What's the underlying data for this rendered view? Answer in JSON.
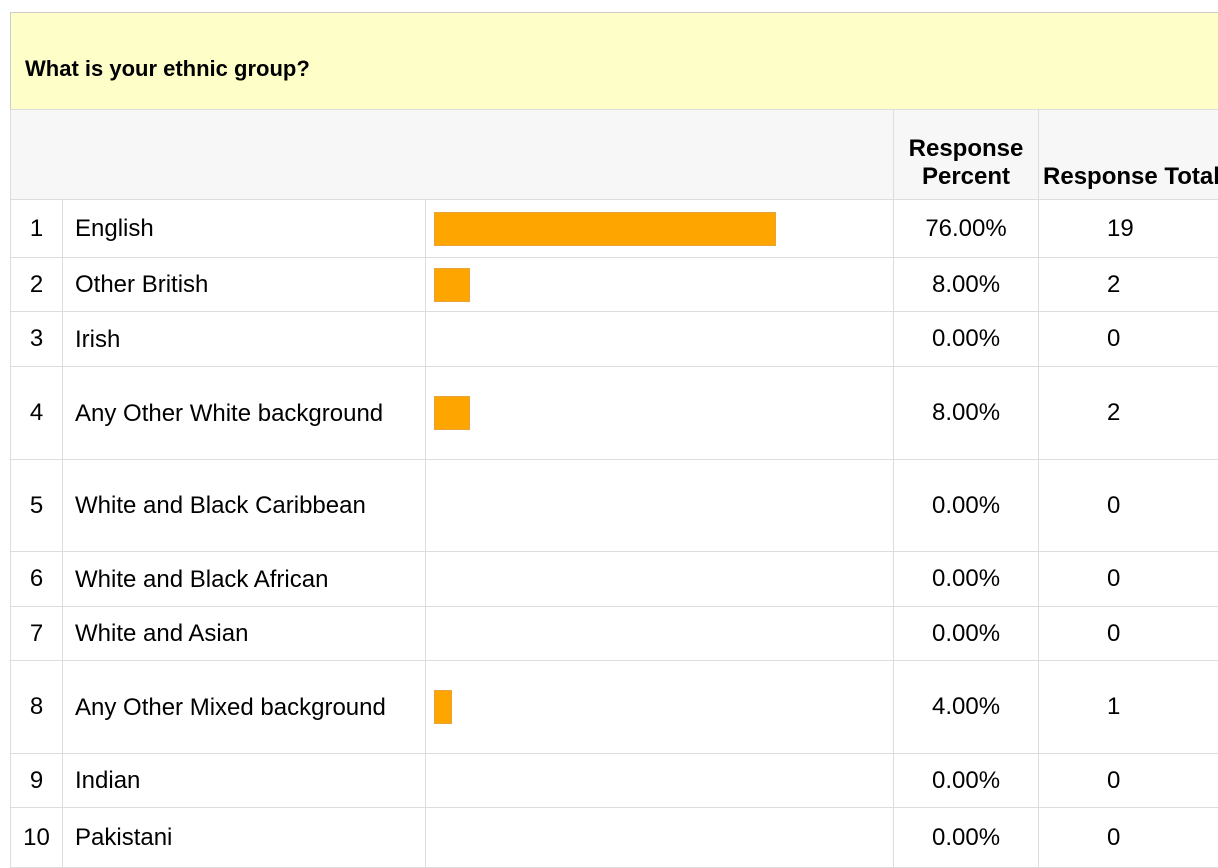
{
  "title": "What is your ethnic group?",
  "table": {
    "columns": [
      "Response Percent",
      "Response Total"
    ],
    "rows": [
      {
        "index": 1,
        "answer": "English",
        "percent": {
          "value": 76,
          "label": "76.00%"
        },
        "total": 19
      },
      {
        "index": 2,
        "answer": "Other British",
        "percent": {
          "value": 8,
          "label": "8.00%"
        },
        "total": 2
      },
      {
        "index": 3,
        "answer": "Irish",
        "percent": {
          "value": 0,
          "label": "0.00%"
        },
        "total": 0
      },
      {
        "index": 4,
        "answer": "Any Other White background",
        "percent": {
          "value": 8,
          "label": "8.00%"
        },
        "total": 2
      },
      {
        "index": 5,
        "answer": "White and Black Caribbean",
        "percent": {
          "value": 0,
          "label": "0.00%"
        },
        "total": 0
      },
      {
        "index": 6,
        "answer": "White and Black African",
        "percent": {
          "value": 0,
          "label": "0.00%"
        },
        "total": 0
      },
      {
        "index": 7,
        "answer": "White and Asian",
        "percent": {
          "value": 0,
          "label": "0.00%"
        },
        "total": 0
      },
      {
        "index": 8,
        "answer": "Any Other Mixed background",
        "percent": {
          "value": 4,
          "label": "4.00%"
        },
        "total": 1
      },
      {
        "index": 9,
        "answer": "Indian",
        "percent": {
          "value": 0,
          "label": "0.00%"
        },
        "total": 0
      },
      {
        "index": 10,
        "answer": "Pakistani",
        "percent": {
          "value": 0,
          "label": "0.00%"
        },
        "total": 0
      }
    ]
  }
}
